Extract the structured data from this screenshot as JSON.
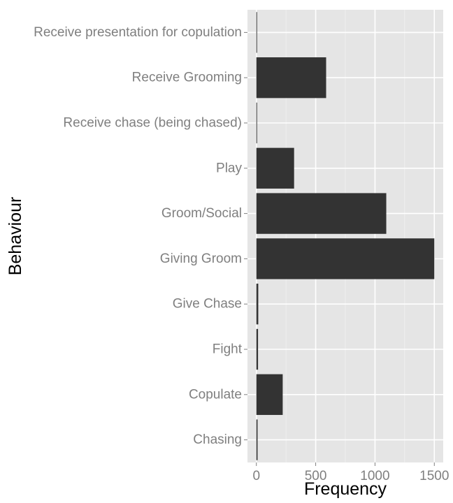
{
  "chart_data": {
    "type": "bar",
    "orientation": "horizontal",
    "title": "",
    "xlabel": "Frequency",
    "ylabel": "Behaviour",
    "categories": [
      "Chasing",
      "Copulate",
      "Fight",
      "Give Chase",
      "Giving Groom",
      "Groom/Social",
      "Play",
      "Receive chase (being chased)",
      "Receive Grooming",
      "Receive presentation for copulation"
    ],
    "values": [
      10,
      222,
      14,
      16,
      1500,
      1095,
      318,
      5,
      588,
      4
    ],
    "xlim": [
      -75,
      1575
    ],
    "xticks": [
      0,
      500,
      1000,
      1500
    ],
    "grid": true,
    "legend": "none",
    "colors": {
      "bar": "#333333",
      "panel_background": "#e5e5e5",
      "major_grid": "#ffffff",
      "minor_grid": "#f2f2f2",
      "tick_label": "#7f7f7f",
      "axis_title": "#000000"
    }
  }
}
